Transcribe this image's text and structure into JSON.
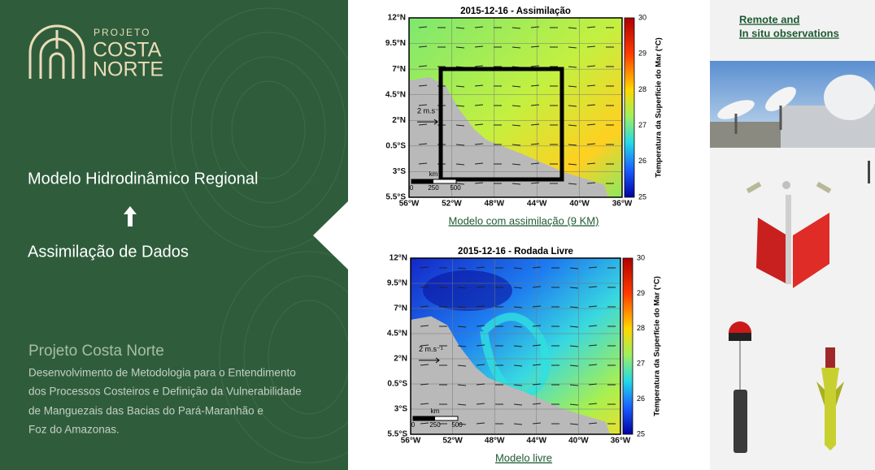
{
  "logo": {
    "line1": "PROJETO",
    "line2": "COSTA",
    "line3": "NORTE"
  },
  "flow": {
    "top": "Modelo Hidrodinâmico Regional",
    "bottom": "Assimilação de Dados"
  },
  "project": {
    "title": "Projeto Costa Norte",
    "description": [
      "Desenvolvimento de Metodologia para o Entendimento",
      "dos Processos Costeiros e Definição da Vulnerabilidade",
      "de Manguezais das Bacias do Pará-Maranhão e",
      "Foz do Amazonas."
    ]
  },
  "map_axes": {
    "y_labels": [
      "12°N",
      "9.5°N",
      "7°N",
      "4.5°N",
      "2°N",
      "0.5°S",
      "3°S",
      "5.5°S"
    ],
    "x_labels": [
      "56°W",
      "52°W",
      "48°W",
      "44°W",
      "40°W",
      "36°W"
    ],
    "colorbar_ticks": [
      "30",
      "29",
      "28",
      "27",
      "26",
      "25"
    ],
    "colorbar_label": "Temperatura da Superfície do Mar (°C)",
    "scale_unit": "km",
    "scale_ticks": [
      "0",
      "250",
      "500"
    ],
    "vector_label": "2 m.s⁻¹"
  },
  "maps": [
    {
      "title": "2015-12-16 - Assimilação",
      "caption": "Modelo com assimilação (9 KM)"
    },
    {
      "title": "2015-12-16 - Rodada Livre",
      "caption": "Modelo livre"
    }
  ],
  "links": {
    "line1": "Remote and",
    "line2": "In situ observations"
  }
}
